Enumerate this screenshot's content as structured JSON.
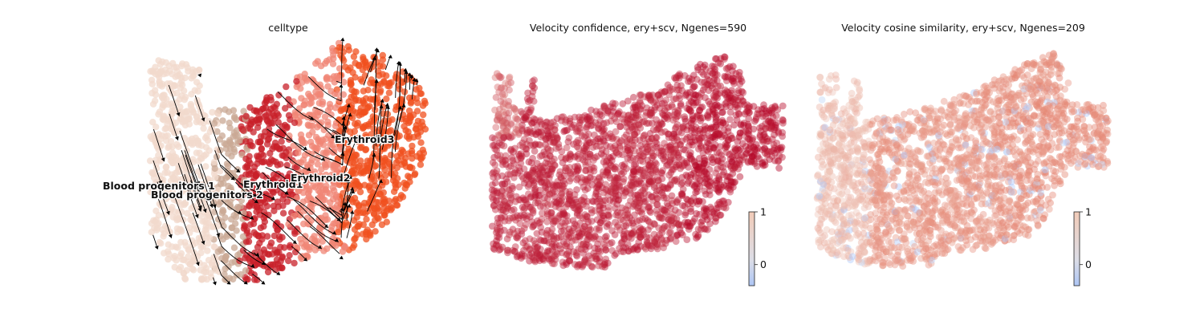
{
  "chart_data": [
    {
      "type": "scatter",
      "title": "celltype",
      "legend_location": "on data",
      "streamlines": true,
      "categories": [
        "Blood progenitors 1",
        "Blood progenitors 2",
        "Erythroid1",
        "Erythroid2",
        "Erythroid3"
      ],
      "category_colors": [
        "#f2d9cc",
        "#c9a894",
        "#c8202a",
        "#f08576",
        "#f0501f"
      ],
      "grid": false
    },
    {
      "type": "scatter",
      "title": "Velocity confidence, ery+scv, Ngenes=590",
      "colorbar": {
        "ticks": [
          "0",
          "1"
        ],
        "colormap": "coolwarm",
        "range": [
          -0.4,
          1
        ]
      },
      "grid": false
    },
    {
      "type": "scatter",
      "title": "Velocity cosine similarity, ery+scv, Ngenes=209",
      "colorbar": {
        "ticks": [
          "0",
          "1"
        ],
        "colormap": "coolwarm",
        "range": [
          -0.4,
          1
        ]
      },
      "grid": false
    }
  ]
}
